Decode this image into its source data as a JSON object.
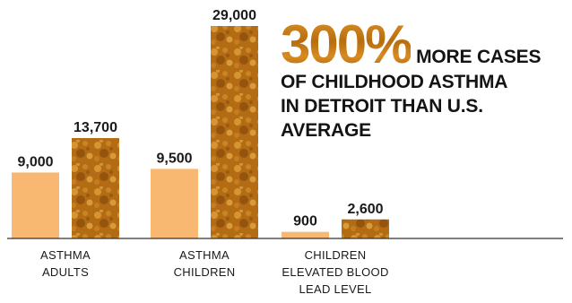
{
  "chart_data": {
    "type": "bar",
    "categories": [
      [
        "ASTHMA",
        "ADULTS"
      ],
      [
        "ASTHMA",
        "CHILDREN"
      ],
      [
        "CHILDREN",
        "ELEVATED BLOOD",
        "LEAD LEVEL"
      ]
    ],
    "series": [
      {
        "values": [
          9000,
          9500,
          900
        ],
        "value_labels": [
          "9,000",
          "9,500",
          "900"
        ]
      },
      {
        "values": [
          13700,
          29000,
          2600
        ],
        "value_labels": [
          "13,700",
          "29,000",
          "2,600"
        ]
      }
    ],
    "ylim": [
      0,
      29000
    ],
    "grid": false,
    "title": "",
    "xlabel": "",
    "ylabel": ""
  },
  "headline": {
    "big": "300%",
    "lead": "MORE CASES",
    "rest": "OF CHILDHOOD ASTHMA IN DETROIT THAN U.S. AVERAGE"
  },
  "colors": {
    "series_0": "#f9b872",
    "series_1": "#b36b14",
    "series_1_highlight": "#e3a23a",
    "series_1_shadow": "#7a4208",
    "axis": "#333333",
    "text": "#1a1a1a"
  }
}
